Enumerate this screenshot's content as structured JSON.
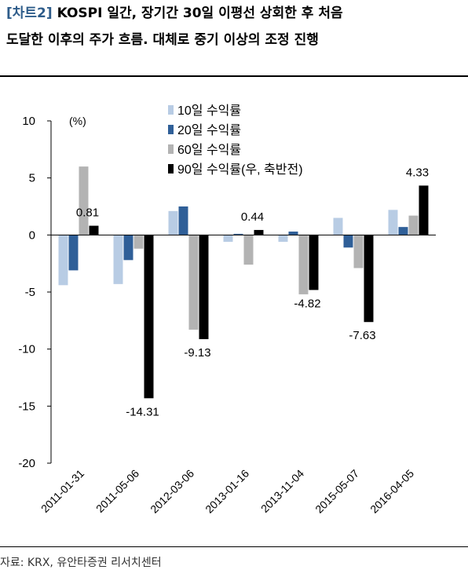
{
  "title": {
    "tag": "[차트2]",
    "line1": " KOSPI 일간, 장기간 30일 이평선 상회한 후 처음",
    "line2": "도달한 이후의 주가 흐름. 대체로 중기 이상의 조정 진행"
  },
  "source": "자료: KRX, 유안타증권 리서치센터",
  "chart_data": {
    "type": "bar",
    "unit_label": "(%)",
    "categories": [
      "2011-01-31",
      "2011-05-06",
      "2012-03-06",
      "2013-01-16",
      "2013-11-04",
      "2015-05-07",
      "2016-04-05"
    ],
    "series": [
      {
        "name": "10일 수익률",
        "color": "#B8CCE4",
        "values": [
          -4.4,
          -4.3,
          2.1,
          -0.6,
          -0.6,
          1.5,
          2.2
        ]
      },
      {
        "name": "20일 수익률",
        "color": "#2F5F98",
        "values": [
          -3.1,
          -2.2,
          2.5,
          0.1,
          0.3,
          -1.1,
          0.7
        ]
      },
      {
        "name": "60일 수익률",
        "color": "#B3B3B3",
        "values": [
          6.0,
          -1.2,
          -8.3,
          -2.6,
          -5.2,
          -2.9,
          1.7
        ]
      },
      {
        "name": "90일 수익률(우, 축반전)",
        "color": "#000000",
        "values": [
          0.81,
          -14.31,
          -9.13,
          0.44,
          -4.82,
          -7.63,
          4.33
        ]
      }
    ],
    "data_labels": [
      "0.81",
      "-14.31",
      "-9.13",
      "0.44",
      "-4.82",
      "-7.63",
      "4.33"
    ],
    "ylim": [
      -20,
      10
    ],
    "yticks": [
      10,
      5,
      0,
      -5,
      -10,
      -15,
      -20
    ],
    "legend_position": "top-right",
    "grid": false
  }
}
